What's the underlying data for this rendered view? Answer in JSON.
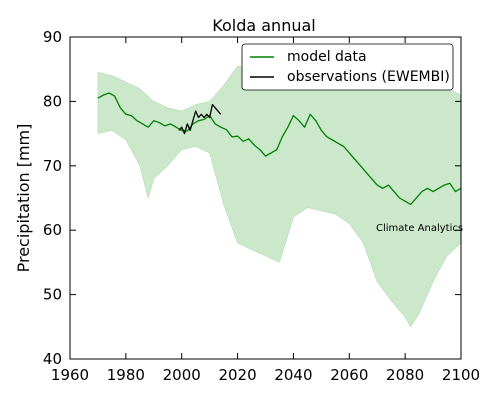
{
  "chart_data": {
    "type": "line",
    "title": "Kolda annual",
    "xlabel": "",
    "ylabel": "Precipitation [mm]",
    "xlim": [
      1960,
      2100
    ],
    "ylim": [
      40,
      90
    ],
    "x_ticks": [
      1960,
      1980,
      2000,
      2020,
      2040,
      2060,
      2080,
      2100
    ],
    "y_ticks": [
      40,
      50,
      60,
      70,
      80,
      90
    ],
    "grid": false,
    "legend_position": "top-right",
    "annotation": "Climate Analytics",
    "series": [
      {
        "name": "model data",
        "color": "#008000",
        "style": "line",
        "points": [
          [
            1970,
            80.5
          ],
          [
            1972,
            81.0
          ],
          [
            1974,
            81.3
          ],
          [
            1976,
            80.8
          ],
          [
            1978,
            79.0
          ],
          [
            1980,
            78.0
          ],
          [
            1982,
            77.8
          ],
          [
            1984,
            77.0
          ],
          [
            1986,
            76.5
          ],
          [
            1988,
            76.0
          ],
          [
            1990,
            77.0
          ],
          [
            1992,
            76.7
          ],
          [
            1994,
            76.2
          ],
          [
            1996,
            76.5
          ],
          [
            1998,
            76.0
          ],
          [
            2000,
            75.5
          ],
          [
            2002,
            75.4
          ],
          [
            2004,
            76.5
          ],
          [
            2006,
            77.0
          ],
          [
            2008,
            77.2
          ],
          [
            2010,
            77.8
          ],
          [
            2012,
            76.5
          ],
          [
            2014,
            76.0
          ],
          [
            2016,
            75.6
          ],
          [
            2018,
            74.5
          ],
          [
            2020,
            74.6
          ],
          [
            2022,
            73.8
          ],
          [
            2024,
            74.2
          ],
          [
            2026,
            73.2
          ],
          [
            2028,
            72.5
          ],
          [
            2030,
            71.5
          ],
          [
            2032,
            72.0
          ],
          [
            2034,
            72.5
          ],
          [
            2036,
            74.5
          ],
          [
            2038,
            76.0
          ],
          [
            2040,
            77.8
          ],
          [
            2042,
            77.0
          ],
          [
            2044,
            76.0
          ],
          [
            2046,
            78.0
          ],
          [
            2048,
            77.0
          ],
          [
            2050,
            75.5
          ],
          [
            2052,
            74.5
          ],
          [
            2054,
            74.0
          ],
          [
            2056,
            73.5
          ],
          [
            2058,
            73.0
          ],
          [
            2060,
            72.0
          ],
          [
            2062,
            71.0
          ],
          [
            2064,
            70.0
          ],
          [
            2066,
            69.0
          ],
          [
            2068,
            68.0
          ],
          [
            2070,
            67.0
          ],
          [
            2072,
            66.5
          ],
          [
            2074,
            67.0
          ],
          [
            2076,
            66.0
          ],
          [
            2078,
            65.0
          ],
          [
            2080,
            64.5
          ],
          [
            2082,
            64.0
          ],
          [
            2084,
            65.0
          ],
          [
            2086,
            66.0
          ],
          [
            2088,
            66.5
          ],
          [
            2090,
            66.0
          ],
          [
            2092,
            66.5
          ],
          [
            2094,
            67.0
          ],
          [
            2096,
            67.3
          ],
          [
            2098,
            66.0
          ],
          [
            2100,
            66.5
          ]
        ]
      },
      {
        "name": "observations (EWEMBI)",
        "color": "#000000",
        "style": "line",
        "points": [
          [
            1999,
            75.5
          ],
          [
            2000,
            76.0
          ],
          [
            2001,
            75.0
          ],
          [
            2002,
            76.5
          ],
          [
            2003,
            75.5
          ],
          [
            2004,
            77.0
          ],
          [
            2005,
            78.5
          ],
          [
            2006,
            77.5
          ],
          [
            2007,
            78.0
          ],
          [
            2008,
            77.5
          ],
          [
            2009,
            78.0
          ],
          [
            2010,
            77.5
          ],
          [
            2011,
            79.5
          ],
          [
            2012,
            79.0
          ],
          [
            2013,
            78.5
          ],
          [
            2014,
            78.0
          ]
        ]
      }
    ],
    "range_band": {
      "color": "#a8d8a8",
      "upper": [
        [
          1970,
          84.5
        ],
        [
          1975,
          84.0
        ],
        [
          1980,
          83.0
        ],
        [
          1985,
          82.0
        ],
        [
          1990,
          80.0
        ],
        [
          1995,
          79.0
        ],
        [
          2000,
          78.5
        ],
        [
          2005,
          79.5
        ],
        [
          2010,
          80.0
        ],
        [
          2015,
          82.5
        ],
        [
          2020,
          85.5
        ],
        [
          2025,
          85.0
        ],
        [
          2030,
          85.5
        ],
        [
          2035,
          86.5
        ],
        [
          2040,
          87.0
        ],
        [
          2045,
          86.0
        ],
        [
          2050,
          86.5
        ],
        [
          2055,
          86.0
        ],
        [
          2060,
          86.0
        ],
        [
          2065,
          85.5
        ],
        [
          2070,
          85.0
        ],
        [
          2075,
          84.5
        ],
        [
          2080,
          84.0
        ],
        [
          2085,
          83.5
        ],
        [
          2090,
          83.0
        ],
        [
          2095,
          82.0
        ],
        [
          2100,
          81.0
        ]
      ],
      "lower": [
        [
          1970,
          75.0
        ],
        [
          1975,
          75.5
        ],
        [
          1980,
          74.0
        ],
        [
          1985,
          70.0
        ],
        [
          1988,
          65.0
        ],
        [
          1990,
          68.0
        ],
        [
          1995,
          70.0
        ],
        [
          2000,
          72.5
        ],
        [
          2005,
          73.0
        ],
        [
          2010,
          72.0
        ],
        [
          2015,
          64.0
        ],
        [
          2020,
          58.0
        ],
        [
          2025,
          57.0
        ],
        [
          2030,
          56.0
        ],
        [
          2035,
          55.0
        ],
        [
          2040,
          62.0
        ],
        [
          2045,
          63.5
        ],
        [
          2050,
          63.0
        ],
        [
          2055,
          62.5
        ],
        [
          2060,
          61.0
        ],
        [
          2065,
          58.0
        ],
        [
          2070,
          52.0
        ],
        [
          2075,
          49.0
        ],
        [
          2080,
          46.5
        ],
        [
          2082,
          45.0
        ],
        [
          2085,
          47.0
        ],
        [
          2090,
          52.0
        ],
        [
          2095,
          56.0
        ],
        [
          2100,
          58.0
        ]
      ]
    }
  }
}
